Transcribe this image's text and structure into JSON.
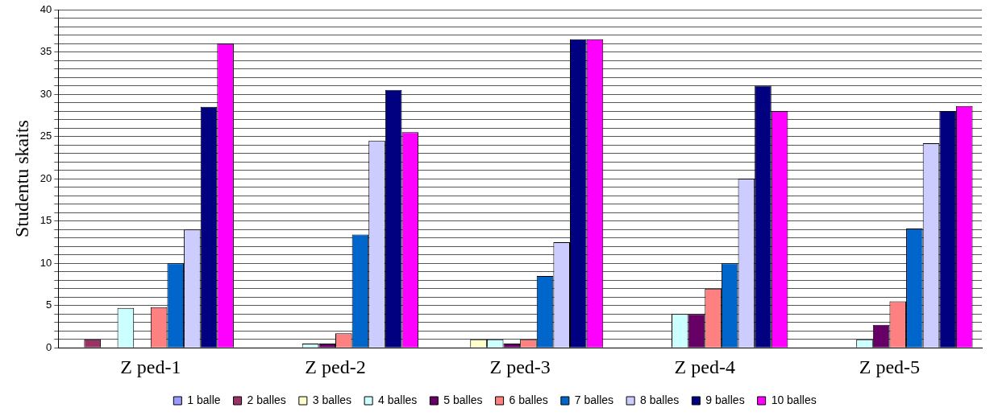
{
  "chart_data": {
    "type": "bar",
    "ylabel": "Studentu skaits",
    "categories": [
      "Z ped-1",
      "Z ped-2",
      "Z ped-3",
      "Z ped-4",
      "Z ped-5"
    ],
    "series": [
      {
        "name": "1 balle",
        "color": "#9999ff",
        "values": [
          0,
          0,
          0,
          0,
          0
        ]
      },
      {
        "name": "2 balles",
        "color": "#993366",
        "values": [
          1,
          0,
          0,
          0,
          0
        ]
      },
      {
        "name": "3 balles",
        "color": "#ffffcc",
        "values": [
          0,
          0,
          1,
          0,
          0
        ]
      },
      {
        "name": "4 balles",
        "color": "#ccffff",
        "values": [
          4.7,
          0.5,
          1,
          4,
          1
        ]
      },
      {
        "name": "5 balles",
        "color": "#660066",
        "values": [
          0,
          0.5,
          0.5,
          4,
          2.7
        ]
      },
      {
        "name": "6 balles",
        "color": "#ff8080",
        "values": [
          4.8,
          1.7,
          1,
          7,
          5.5
        ]
      },
      {
        "name": "7 balles",
        "color": "#0066cc",
        "values": [
          10,
          13.4,
          8.5,
          10,
          14.1
        ]
      },
      {
        "name": "8 balles",
        "color": "#ccccff",
        "values": [
          14,
          24.5,
          12.5,
          20,
          24.2
        ]
      },
      {
        "name": "9 balles",
        "color": "#000080",
        "values": [
          28.5,
          30.5,
          36.5,
          31,
          28
        ]
      },
      {
        "name": "10 balles",
        "color": "#ff00ff",
        "values": [
          36,
          25.5,
          36.5,
          28,
          28.6
        ]
      }
    ],
    "ylim": [
      0,
      40
    ],
    "yticks": [
      0,
      {
        "value": 1,
        "label": null
      },
      {
        "value": 2,
        "label": null
      },
      {
        "value": 3,
        "label": null
      },
      {
        "value": 4,
        "label": null
      },
      5,
      {
        "value": 6,
        "label": null
      },
      {
        "value": 7,
        "label": null
      },
      {
        "value": 8,
        "label": null
      },
      {
        "value": 9,
        "label": null
      },
      10,
      {
        "value": 11,
        "label": null
      },
      {
        "value": 12,
        "label": null
      },
      {
        "value": 13,
        "label": null
      },
      {
        "value": 14,
        "label": null
      },
      15,
      {
        "value": 16,
        "label": null
      },
      {
        "value": 17,
        "label": null
      },
      {
        "value": 18,
        "label": null
      },
      {
        "value": 19,
        "label": null
      },
      20,
      {
        "value": 21,
        "label": null
      },
      {
        "value": 22,
        "label": null
      },
      {
        "value": 23,
        "label": null
      },
      {
        "value": 24,
        "label": null
      },
      25,
      {
        "value": 26,
        "label": null
      },
      {
        "value": 27,
        "label": null
      },
      {
        "value": 28,
        "label": null
      },
      {
        "value": 29,
        "label": null
      },
      30,
      {
        "value": 31,
        "label": null
      },
      {
        "value": 32,
        "label": null
      },
      {
        "value": 33,
        "label": null
      },
      {
        "value": 34,
        "label": null
      },
      35,
      {
        "value": 36,
        "label": null
      },
      {
        "value": 37,
        "label": null
      },
      {
        "value": 38,
        "label": null
      },
      {
        "value": 39,
        "label": null
      },
      40
    ],
    "grid": "y",
    "legend": "bottom"
  }
}
